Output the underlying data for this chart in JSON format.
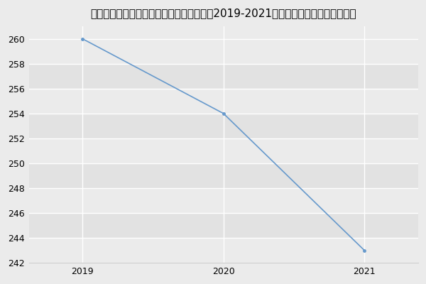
{
  "title": "内蒙古大学计算机学院计算机科学与技术（2019-2021历年复试）研究生录取分数线",
  "x": [
    2019,
    2020,
    2021
  ],
  "y": [
    260,
    254,
    243
  ],
  "line_color": "#6699cc",
  "ylim": [
    242,
    261
  ],
  "yticks": [
    242,
    244,
    246,
    248,
    250,
    252,
    254,
    256,
    258,
    260
  ],
  "xticks": [
    2019,
    2020,
    2021
  ],
  "background_color": "#ebebeb",
  "band_color_dark": "#e2e2e2",
  "band_color_light": "#ebebeb",
  "grid_line_color": "#ffffff",
  "title_fontsize": 11,
  "xlim": [
    2018.62,
    2021.38
  ]
}
